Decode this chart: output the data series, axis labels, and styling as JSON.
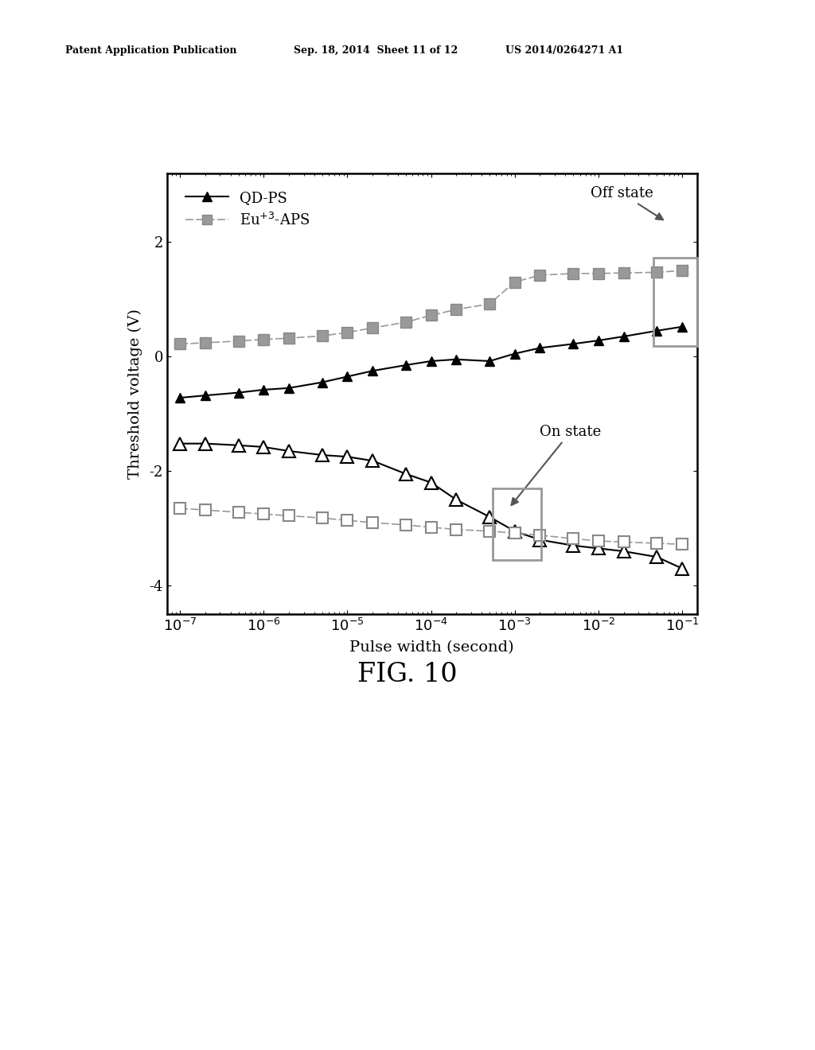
{
  "header_left": "Patent Application Publication",
  "header_mid": "Sep. 18, 2014  Sheet 11 of 12",
  "header_right": "US 2014/0264271 A1",
  "fig_label": "FIG. 10",
  "ylabel": "Threshold voltage (V)",
  "xlabel": "Pulse width (second)",
  "ylim": [
    -4.5,
    3.2
  ],
  "yticks": [
    -4,
    -2,
    0,
    2
  ],
  "background_color": "#ffffff",
  "qd_off_x": [
    1e-07,
    2e-07,
    5e-07,
    1e-06,
    2e-06,
    5e-06,
    1e-05,
    2e-05,
    5e-05,
    0.0001,
    0.0002,
    0.0005,
    0.001,
    0.002,
    0.005,
    0.01,
    0.02,
    0.05,
    0.1
  ],
  "qd_off_y": [
    -0.72,
    -0.68,
    -0.63,
    -0.58,
    -0.55,
    -0.45,
    -0.35,
    -0.25,
    -0.15,
    -0.08,
    -0.05,
    -0.08,
    0.05,
    0.15,
    0.22,
    0.28,
    0.35,
    0.45,
    0.52
  ],
  "eu_off_x": [
    1e-07,
    2e-07,
    5e-07,
    1e-06,
    2e-06,
    5e-06,
    1e-05,
    2e-05,
    5e-05,
    0.0001,
    0.0002,
    0.0005,
    0.001,
    0.002,
    0.005,
    0.01,
    0.02,
    0.05,
    0.1
  ],
  "eu_off_y": [
    0.22,
    0.24,
    0.27,
    0.3,
    0.32,
    0.36,
    0.42,
    0.5,
    0.6,
    0.72,
    0.82,
    0.92,
    1.3,
    1.42,
    1.45,
    1.45,
    1.46,
    1.47,
    1.5
  ],
  "qd_on_x": [
    1e-07,
    2e-07,
    5e-07,
    1e-06,
    2e-06,
    5e-06,
    1e-05,
    2e-05,
    5e-05,
    0.0001,
    0.0002,
    0.0005,
    0.001,
    0.002,
    0.005,
    0.01,
    0.02,
    0.05,
    0.1
  ],
  "qd_on_y": [
    -1.52,
    -1.52,
    -1.55,
    -1.58,
    -1.65,
    -1.72,
    -1.75,
    -1.82,
    -2.05,
    -2.2,
    -2.5,
    -2.8,
    -3.05,
    -3.2,
    -3.3,
    -3.35,
    -3.4,
    -3.5,
    -3.7
  ],
  "eu_on_x": [
    1e-07,
    2e-07,
    5e-07,
    1e-06,
    2e-06,
    5e-06,
    1e-05,
    2e-05,
    5e-05,
    0.0001,
    0.0002,
    0.0005,
    0.001,
    0.002,
    0.005,
    0.01,
    0.02,
    0.05,
    0.1
  ],
  "eu_on_y": [
    -2.65,
    -2.68,
    -2.72,
    -2.75,
    -2.78,
    -2.82,
    -2.86,
    -2.9,
    -2.94,
    -2.98,
    -3.02,
    -3.05,
    -3.08,
    -3.12,
    -3.18,
    -3.22,
    -3.24,
    -3.26,
    -3.28
  ]
}
